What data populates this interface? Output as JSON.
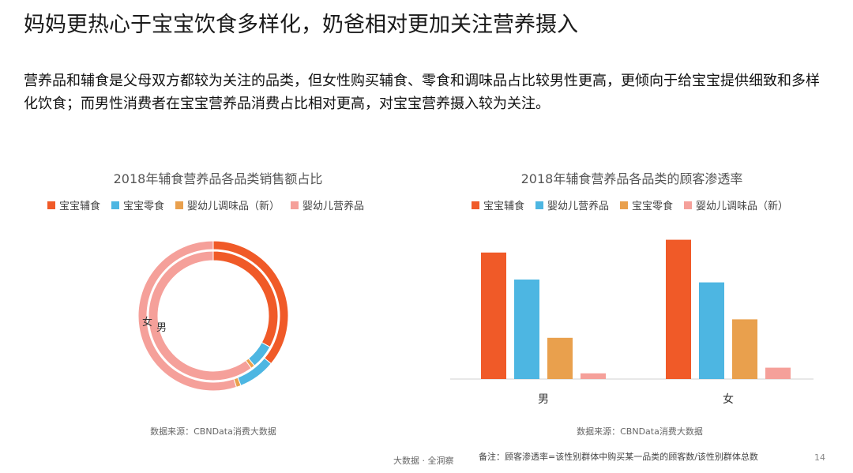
{
  "slide": {
    "title": "妈妈更热心于宝宝饮食多样化，奶爸相对更加关注营养摄入",
    "subtitle": "营养品和辅食是父母双方都较为关注的品类，但女性购买辅食、零食和调味品占比较男性更高，更倾向于给宝宝提供细致和多样化饮食；而男性消费者在宝宝营养品消费占比相对更高，对宝宝营养摄入较为关注。",
    "footer_left": "大数据 · 全洞察",
    "footer_note": "备注：顾客渗透率=该性别群体中购买某一品类的顾客数/该性别群体总数",
    "page_number": "14"
  },
  "chart_data": [
    {
      "type": "donut",
      "title": "2018年辅食营养品各品类销售额占比",
      "categories": [
        "宝宝辅食",
        "宝宝零食",
        "婴幼儿调味品（新）",
        "婴幼儿营养品"
      ],
      "colors": [
        "#F05A28",
        "#4DB6E2",
        "#E9A04D",
        "#F5A09A"
      ],
      "series": [
        {
          "name": "男",
          "values": [
            33,
            6,
            1,
            60
          ]
        },
        {
          "name": "女",
          "values": [
            36,
            8,
            1,
            55
          ]
        }
      ],
      "ring_labels": [
        "女",
        "男"
      ],
      "source": "数据来源：CBNData消费大数据"
    },
    {
      "type": "bar",
      "title": "2018年辅食营养品各品类的顾客渗透率",
      "categories": [
        "男",
        "女"
      ],
      "series": [
        {
          "name": "宝宝辅食",
          "color": "#F05A28",
          "values": [
            0.89,
            0.98
          ]
        },
        {
          "name": "婴幼儿营养品",
          "color": "#4DB6E2",
          "values": [
            0.7,
            0.68
          ]
        },
        {
          "name": "宝宝零食",
          "color": "#E9A04D",
          "values": [
            0.29,
            0.42
          ]
        },
        {
          "name": "婴幼儿调味品（新）",
          "color": "#F5A09A",
          "values": [
            0.04,
            0.08
          ]
        }
      ],
      "ylim": [
        0,
        1
      ],
      "source": "数据来源：CBNData消费大数据"
    }
  ]
}
